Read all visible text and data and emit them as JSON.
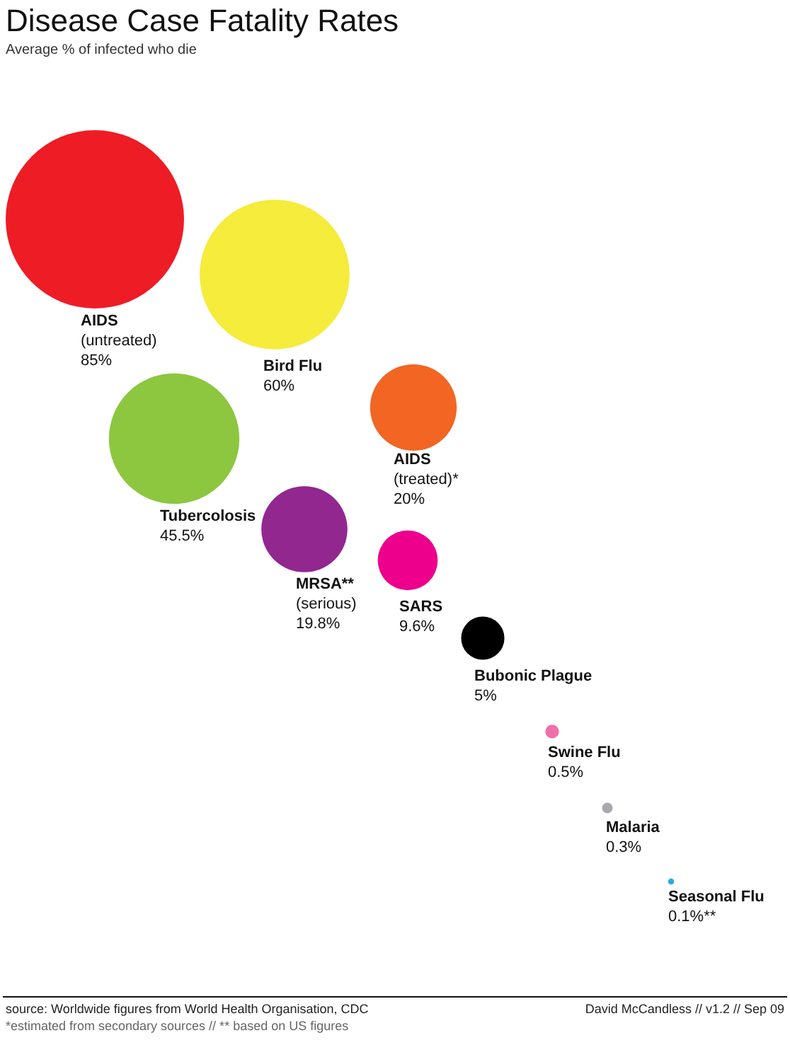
{
  "chart_data": {
    "type": "other",
    "title": "Disease Case Fatality Rates",
    "subtitle": "Average % of infected who die",
    "categories": [
      "AIDS\n(untreated)",
      "Bird Flu",
      "Tubercolosis",
      "AIDS\n(treated)*",
      "MRSA**\n(serious)",
      "SARS",
      "Bubonic Plague",
      "Swine Flu",
      "Malaria",
      "Seasonal Flu"
    ],
    "values": [
      85,
      60,
      45.5,
      20,
      19.8,
      9.6,
      5,
      0.5,
      0.3,
      0.1
    ],
    "value_labels": [
      "85%",
      "60%",
      "45.5%",
      "20%",
      "19.8%",
      "9.6%",
      "5%",
      "0.5%",
      "0.3%",
      "0.1%**"
    ],
    "colors": [
      "#ee1c25",
      "#f5ec3c",
      "#8dc63f",
      "#f26522",
      "#92278f",
      "#ec008c",
      "#000000",
      "#f06eaa",
      "#a7a9ac",
      "#29abe2"
    ],
    "annotations": [
      "source: Worldwide figures from World Health Organisation, CDC",
      "*estimated from secondary sources // ** based on US figures",
      "David McCandless // v1.2 // Sep 09"
    ]
  }
}
